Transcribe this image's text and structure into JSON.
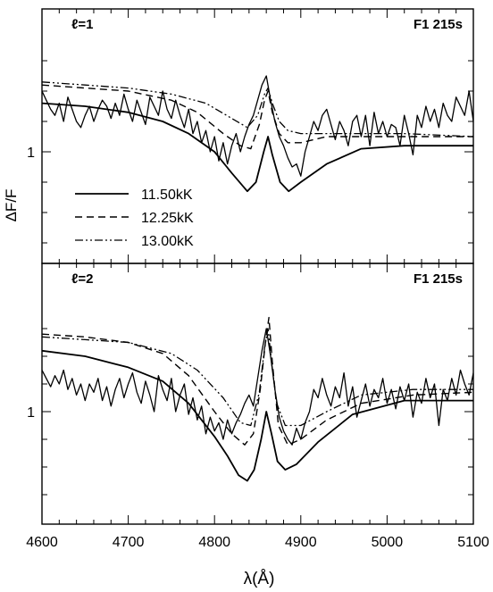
{
  "chart_data": [
    {
      "type": "line",
      "panel_label": "ℓ=1",
      "field_label": "F1 215s",
      "ylabel": "ΔF/F",
      "xlabel": "λ(Å)",
      "xlim": [
        4600,
        5100
      ],
      "xticks": [
        4600,
        4700,
        4800,
        4900,
        5000,
        5100
      ],
      "ytick_label": "1",
      "legend": {
        "placement": "lower-left",
        "entries": [
          {
            "label": "11.50kK",
            "style": "solid"
          },
          {
            "label": "12.25kK",
            "style": "dashed"
          },
          {
            "label": "13.00kK",
            "style": "dash-dot-dot"
          }
        ]
      },
      "series": [
        {
          "name": "11.50kK",
          "style": "solid",
          "x": [
            4600,
            4650,
            4700,
            4740,
            4770,
            4800,
            4820,
            4838,
            4848,
            4857,
            4862,
            4867,
            4876,
            4886,
            4900,
            4930,
            4970,
            5020,
            5100
          ],
          "y": [
            1.16,
            1.15,
            1.13,
            1.1,
            1.06,
            1.0,
            0.93,
            0.87,
            0.9,
            1.0,
            1.05,
            0.99,
            0.9,
            0.87,
            0.9,
            0.96,
            1.01,
            1.02,
            1.02
          ]
        },
        {
          "name": "12.25kK",
          "style": "dashed",
          "x": [
            4600,
            4650,
            4700,
            4750,
            4780,
            4810,
            4830,
            4842,
            4852,
            4858,
            4862,
            4867,
            4875,
            4885,
            4900,
            4930,
            4970,
            5020,
            5100
          ],
          "y": [
            1.22,
            1.21,
            1.2,
            1.17,
            1.13,
            1.06,
            1.02,
            1.01,
            1.09,
            1.17,
            1.2,
            1.13,
            1.06,
            1.03,
            1.03,
            1.05,
            1.05,
            1.05,
            1.05
          ]
        },
        {
          "name": "13.00kK",
          "style": "dash-dot-dot",
          "x": [
            4600,
            4650,
            4700,
            4750,
            4790,
            4820,
            4838,
            4850,
            4858,
            4862,
            4867,
            4875,
            4885,
            4900,
            4930,
            4970,
            5020,
            5100
          ],
          "y": [
            1.23,
            1.22,
            1.21,
            1.19,
            1.16,
            1.11,
            1.08,
            1.12,
            1.19,
            1.21,
            1.16,
            1.1,
            1.07,
            1.06,
            1.06,
            1.06,
            1.06,
            1.05
          ]
        },
        {
          "name": "observed",
          "style": "thin-solid",
          "x": [
            4600,
            4605,
            4610,
            4615,
            4620,
            4625,
            4630,
            4635,
            4640,
            4645,
            4650,
            4655,
            4660,
            4665,
            4670,
            4675,
            4680,
            4685,
            4690,
            4695,
            4700,
            4705,
            4710,
            4715,
            4720,
            4725,
            4730,
            4735,
            4740,
            4745,
            4750,
            4755,
            4760,
            4765,
            4770,
            4775,
            4780,
            4785,
            4790,
            4795,
            4800,
            4805,
            4810,
            4815,
            4820,
            4825,
            4830,
            4835,
            4840,
            4845,
            4850,
            4855,
            4860,
            4865,
            4870,
            4875,
            4880,
            4885,
            4890,
            4895,
            4900,
            4905,
            4910,
            4915,
            4920,
            4925,
            4930,
            4935,
            4940,
            4945,
            4950,
            4955,
            4960,
            4965,
            4970,
            4975,
            4980,
            4985,
            4990,
            4995,
            5000,
            5005,
            5010,
            5015,
            5020,
            5025,
            5030,
            5035,
            5040,
            5045,
            5050,
            5055,
            5060,
            5065,
            5070,
            5075,
            5080,
            5085,
            5090,
            5095,
            5100
          ],
          "y": [
            1.2,
            1.17,
            1.14,
            1.12,
            1.16,
            1.1,
            1.18,
            1.14,
            1.1,
            1.08,
            1.12,
            1.15,
            1.1,
            1.14,
            1.17,
            1.15,
            1.11,
            1.16,
            1.12,
            1.19,
            1.14,
            1.1,
            1.17,
            1.13,
            1.09,
            1.18,
            1.15,
            1.12,
            1.2,
            1.14,
            1.11,
            1.17,
            1.12,
            1.08,
            1.14,
            1.06,
            1.1,
            1.03,
            1.07,
            1.0,
            1.05,
            0.97,
            1.03,
            0.96,
            1.02,
            1.06,
            1.0,
            1.05,
            1.09,
            1.12,
            1.17,
            1.22,
            1.25,
            1.17,
            1.1,
            1.05,
            1.02,
            0.98,
            0.95,
            0.96,
            0.92,
            1.0,
            1.05,
            1.1,
            1.07,
            1.12,
            1.14,
            1.09,
            1.04,
            1.1,
            1.07,
            1.02,
            1.1,
            1.12,
            1.05,
            1.12,
            1.02,
            1.13,
            1.06,
            1.1,
            1.05,
            1.09,
            1.08,
            1.02,
            1.12,
            1.06,
            0.99,
            1.12,
            1.08,
            1.15,
            1.1,
            1.14,
            1.08,
            1.16,
            1.12,
            1.1,
            1.18,
            1.15,
            1.12,
            1.2,
            1.1
          ]
        }
      ]
    },
    {
      "type": "line",
      "panel_label": "ℓ=2",
      "field_label": "F1 215s",
      "ylabel": "ΔF/F",
      "xlabel": "λ(Å)",
      "xlim": [
        4600,
        5100
      ],
      "xticks": [
        4600,
        4700,
        4800,
        4900,
        5000,
        5100
      ],
      "ytick_label": "1",
      "series": [
        {
          "name": "11.50kK",
          "style": "solid",
          "x": [
            4600,
            4650,
            4700,
            4740,
            4770,
            4800,
            4815,
            4828,
            4838,
            4846,
            4854,
            4860,
            4866,
            4873,
            4882,
            4895,
            4920,
            4960,
            5020,
            5100
          ],
          "y": [
            1.22,
            1.2,
            1.16,
            1.11,
            1.03,
            0.91,
            0.84,
            0.77,
            0.75,
            0.79,
            0.9,
            1.0,
            0.92,
            0.82,
            0.79,
            0.81,
            0.89,
            0.99,
            1.04,
            1.04
          ]
        },
        {
          "name": "12.25kK",
          "style": "dashed",
          "x": [
            4600,
            4650,
            4700,
            4740,
            4770,
            4800,
            4820,
            4835,
            4845,
            4853,
            4859,
            4863,
            4867,
            4874,
            4885,
            4900,
            4930,
            4970,
            5030,
            5100
          ],
          "y": [
            1.28,
            1.27,
            1.25,
            1.21,
            1.13,
            1.0,
            0.92,
            0.88,
            0.92,
            1.08,
            1.25,
            1.34,
            1.18,
            0.95,
            0.88,
            0.9,
            0.97,
            1.03,
            1.06,
            1.07
          ]
        },
        {
          "name": "13.00kK",
          "style": "dash-dot-dot",
          "x": [
            4600,
            4650,
            4700,
            4750,
            4780,
            4810,
            4830,
            4842,
            4852,
            4858,
            4862,
            4866,
            4872,
            4882,
            4900,
            4930,
            4970,
            5030,
            5100
          ],
          "y": [
            1.27,
            1.26,
            1.25,
            1.21,
            1.15,
            1.05,
            0.96,
            0.95,
            1.07,
            1.23,
            1.3,
            1.18,
            1.03,
            0.95,
            0.95,
            1.0,
            1.06,
            1.08,
            1.08
          ]
        },
        {
          "name": "observed",
          "style": "thin-solid",
          "x": [
            4600,
            4605,
            4610,
            4615,
            4620,
            4625,
            4630,
            4635,
            4640,
            4645,
            4650,
            4655,
            4660,
            4665,
            4670,
            4675,
            4680,
            4685,
            4690,
            4695,
            4700,
            4705,
            4710,
            4715,
            4720,
            4725,
            4730,
            4735,
            4740,
            4745,
            4750,
            4755,
            4760,
            4765,
            4770,
            4775,
            4780,
            4785,
            4790,
            4795,
            4800,
            4805,
            4810,
            4815,
            4820,
            4825,
            4830,
            4835,
            4840,
            4845,
            4850,
            4855,
            4860,
            4865,
            4870,
            4875,
            4880,
            4885,
            4890,
            4895,
            4900,
            4905,
            4910,
            4915,
            4920,
            4925,
            4930,
            4935,
            4940,
            4945,
            4950,
            4955,
            4960,
            4965,
            4970,
            4975,
            4980,
            4985,
            4990,
            4995,
            5000,
            5005,
            5010,
            5015,
            5020,
            5025,
            5030,
            5035,
            5040,
            5045,
            5050,
            5055,
            5060,
            5065,
            5070,
            5075,
            5080,
            5085,
            5090,
            5095,
            5100
          ],
          "y": [
            1.15,
            1.12,
            1.09,
            1.13,
            1.1,
            1.15,
            1.08,
            1.12,
            1.06,
            1.1,
            1.04,
            1.1,
            1.07,
            1.12,
            1.04,
            1.09,
            1.02,
            1.08,
            1.12,
            1.05,
            1.1,
            1.14,
            1.07,
            1.03,
            1.11,
            1.06,
            1.0,
            1.13,
            1.08,
            1.04,
            1.12,
            1.0,
            1.06,
            1.1,
            0.99,
            1.05,
            0.97,
            1.02,
            0.92,
            0.98,
            0.93,
            0.96,
            0.9,
            0.97,
            0.92,
            0.96,
            0.99,
            1.03,
            1.06,
            1.02,
            1.12,
            1.22,
            1.3,
            1.2,
            1.08,
            0.98,
            0.93,
            0.9,
            0.88,
            0.94,
            0.9,
            0.96,
            1.0,
            1.08,
            1.05,
            1.12,
            1.06,
            1.02,
            1.09,
            1.05,
            1.14,
            1.02,
            1.09,
            0.98,
            1.04,
            1.1,
            1.02,
            1.08,
            1.05,
            1.12,
            1.03,
            1.08,
            1.01,
            1.09,
            1.04,
            1.1,
            0.98,
            1.07,
            1.03,
            1.12,
            1.05,
            1.1,
            0.95,
            1.08,
            1.04,
            1.12,
            1.06,
            1.15,
            1.1,
            1.06,
            1.14
          ]
        }
      ]
    }
  ]
}
